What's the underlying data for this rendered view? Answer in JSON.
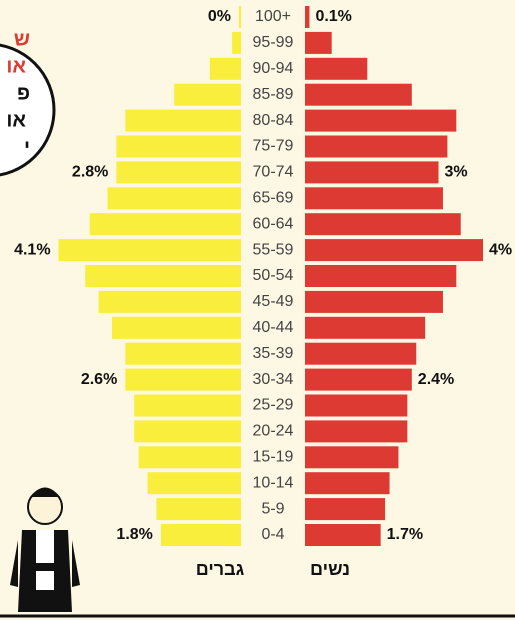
{
  "chart_data": {
    "type": "pyramid",
    "categories": [
      "100+",
      "95-99",
      "90-94",
      "85-89",
      "80-84",
      "75-79",
      "70-74",
      "65-69",
      "60-64",
      "55-59",
      "50-54",
      "45-49",
      "40-44",
      "35-39",
      "30-34",
      "25-29",
      "20-24",
      "15-19",
      "10-14",
      "5-9",
      "0-4"
    ],
    "series": [
      {
        "name": "גברים",
        "color": "#f9ee3c",
        "values": [
          0,
          0.2,
          0.7,
          1.5,
          2.6,
          2.8,
          2.8,
          3.0,
          3.4,
          4.1,
          3.5,
          3.2,
          2.9,
          2.6,
          2.6,
          2.4,
          2.4,
          2.3,
          2.1,
          1.9,
          1.8
        ],
        "value_labels": [
          "0%",
          null,
          null,
          null,
          null,
          null,
          "2.8%",
          null,
          null,
          "4.1%",
          null,
          null,
          null,
          null,
          "2.6%",
          null,
          null,
          null,
          null,
          null,
          "1.8%"
        ]
      },
      {
        "name": "נשים",
        "color": "#dc3a32",
        "values": [
          0.1,
          0.6,
          1.4,
          2.4,
          3.4,
          3.2,
          3,
          3.1,
          3.5,
          4,
          3.4,
          3.1,
          2.7,
          2.5,
          2.4,
          2.3,
          2.3,
          2.1,
          1.9,
          1.8,
          1.7
        ],
        "value_labels": [
          "0.1%",
          null,
          null,
          null,
          null,
          null,
          "3%",
          null,
          null,
          "4%",
          null,
          null,
          null,
          null,
          "2.4%",
          null,
          null,
          null,
          null,
          null,
          "1.7%"
        ]
      }
    ]
  },
  "badge": {
    "lines": [
      "ש",
      "או",
      "פ",
      "או",
      "י"
    ]
  }
}
